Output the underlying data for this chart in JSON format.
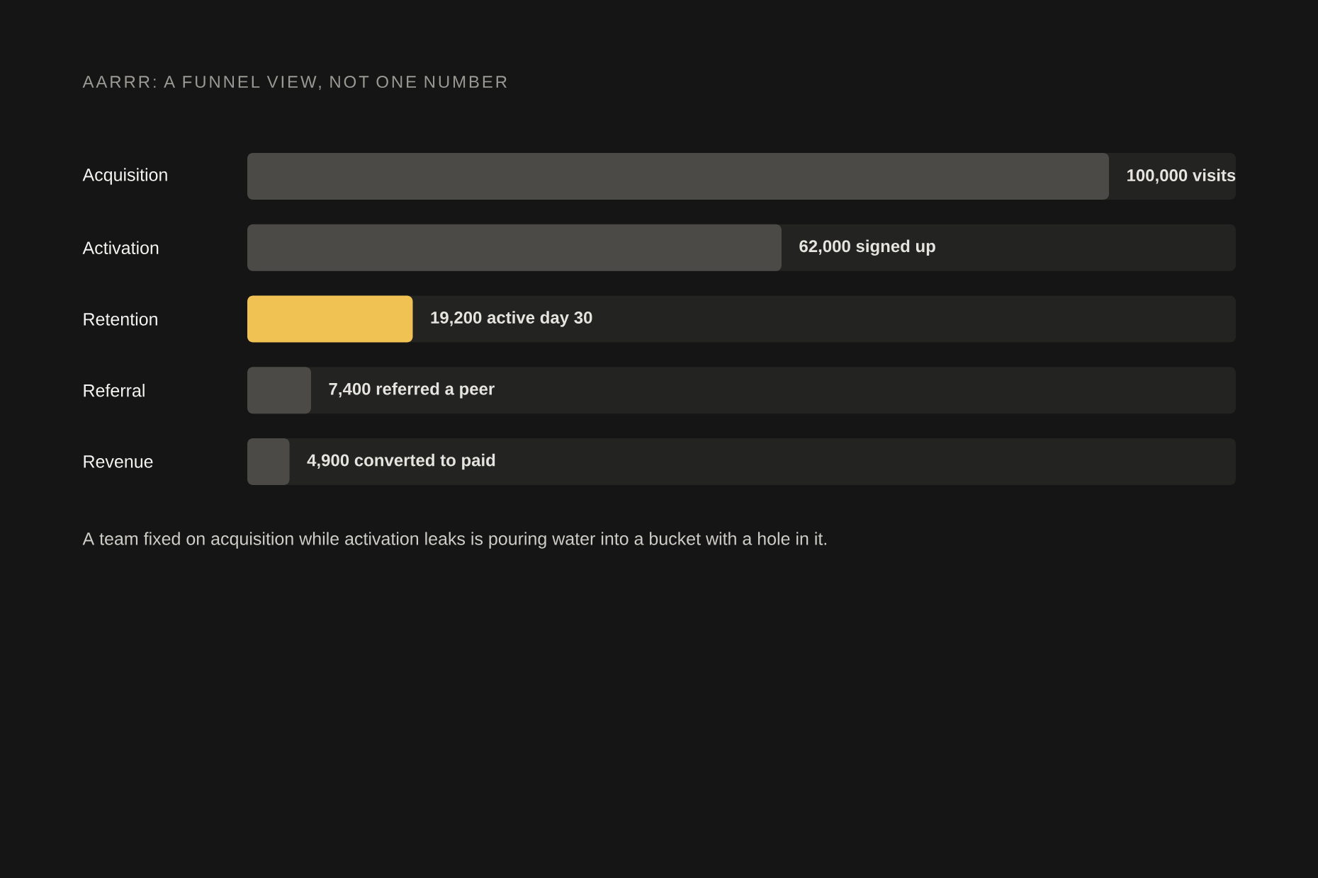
{
  "chart_data": {
    "type": "bar",
    "orientation": "horizontal",
    "title": "AARRR: A FUNNEL VIEW, NOT ONE NUMBER",
    "categories": [
      "Acquisition",
      "Activation",
      "Retention",
      "Referral",
      "Revenue"
    ],
    "values": [
      100000,
      62000,
      19200,
      7400,
      4900
    ],
    "value_labels": [
      "100,000 visits",
      "62,000 signed up",
      "19,200 active day 30",
      "7,400 referred a peer",
      "4,900 converted to paid"
    ],
    "colors": [
      "#4b4a46",
      "#4b4a46",
      "#f0c253",
      "#4b4a46",
      "#4b4a46"
    ],
    "annotations": [
      "A team fixed on acquisition while activation leaks is pouring water into a bucket with a hole in it."
    ]
  }
}
